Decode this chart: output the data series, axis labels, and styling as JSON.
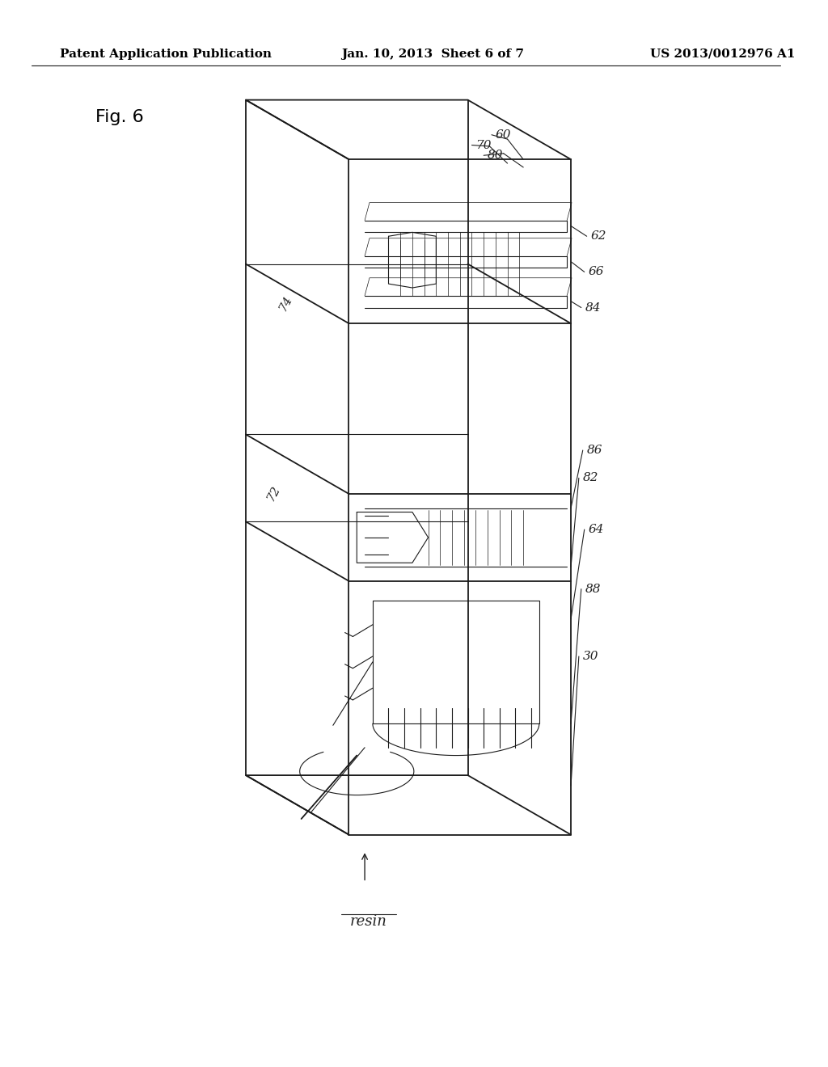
{
  "background_color": "#ffffff",
  "header_left": "Patent Application Publication",
  "header_center": "Jan. 10, 2013  Sheet 6 of 7",
  "header_right": "US 2013/0012976 A1",
  "figure_label": "Fig. 6",
  "header_fontsize": 11,
  "fig_label_fontsize": 16,
  "ann_fontsize": 11,
  "line_color": "#1a1a1a",
  "ann_color": "#222222"
}
